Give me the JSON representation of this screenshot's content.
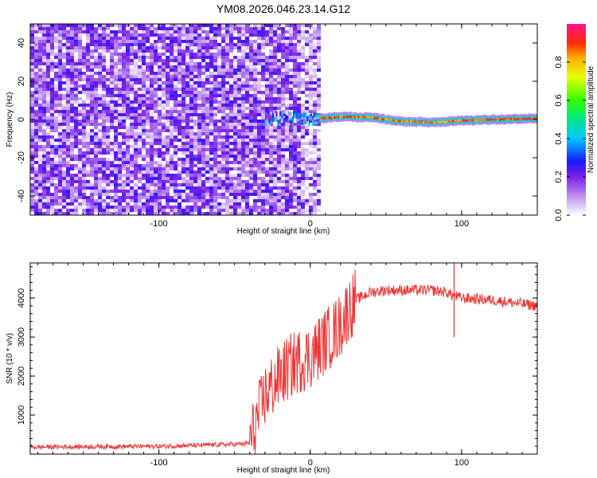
{
  "figure_title": "YM08.2026.046.23.14.G12",
  "chart_data": [
    {
      "type": "heatmap",
      "title": "YM08.2026.046.23.14.G12",
      "xlabel": "Height of straight line (km)",
      "ylabel": "Frequency (Hz)",
      "xlim": [
        -185,
        150
      ],
      "ylim": [
        -50,
        50
      ],
      "xticks": [
        -100,
        0,
        100
      ],
      "yticks": [
        -40,
        -20,
        0,
        20,
        40
      ],
      "noise_region_x": [
        -185,
        5
      ],
      "noise_amplitude_range": [
        0.0,
        0.25
      ],
      "signal_onset_x": -30,
      "carrier_track": [
        {
          "x": -30,
          "freq": 0.5,
          "amp": 0.35
        },
        {
          "x": 5,
          "freq": 0.5,
          "amp": 1.0
        },
        {
          "x": 20,
          "freq": 1.5,
          "amp": 0.95
        },
        {
          "x": 40,
          "freq": 1.0,
          "amp": 0.95
        },
        {
          "x": 60,
          "freq": -1.0,
          "amp": 0.9
        },
        {
          "x": 80,
          "freq": -1.5,
          "amp": 0.9
        },
        {
          "x": 100,
          "freq": -0.5,
          "amp": 0.95
        },
        {
          "x": 150,
          "freq": 0.5,
          "amp": 1.0
        }
      ],
      "colorbar": {
        "label": "Normalized spectral amplitude",
        "range": [
          0,
          1
        ],
        "ticks": [
          "0.0",
          "0.2",
          "0.4",
          "0.6",
          "0.8"
        ],
        "tick_values": [
          0.0,
          0.2,
          0.4,
          0.6,
          0.8
        ]
      }
    },
    {
      "type": "line",
      "xlabel": "Height of straight line (km)",
      "ylabel": "SNR (10 * v/v)",
      "xlim": [
        -185,
        150
      ],
      "ylim": [
        0,
        4900
      ],
      "xticks": [
        -100,
        0,
        100
      ],
      "yticks": [
        1000,
        2000,
        3000,
        4000
      ],
      "series": [
        {
          "name": "SNR",
          "color": "#ee3333",
          "x": [
            -185,
            -150,
            -100,
            -60,
            -45,
            -40,
            -35,
            -30,
            -20,
            -10,
            0,
            10,
            20,
            25,
            30,
            40,
            50,
            60,
            80,
            90,
            95,
            100,
            120,
            140,
            150
          ],
          "y": [
            180,
            190,
            200,
            240,
            260,
            280,
            900,
            1500,
            2000,
            2350,
            2500,
            2900,
            3300,
            3700,
            3950,
            4150,
            4200,
            4200,
            4200,
            4150,
            4050,
            4000,
            3950,
            3850,
            3800
          ]
        }
      ],
      "spikes": [
        {
          "x": 95,
          "y": 4900
        },
        {
          "x": 95,
          "y": 3000
        }
      ]
    }
  ]
}
